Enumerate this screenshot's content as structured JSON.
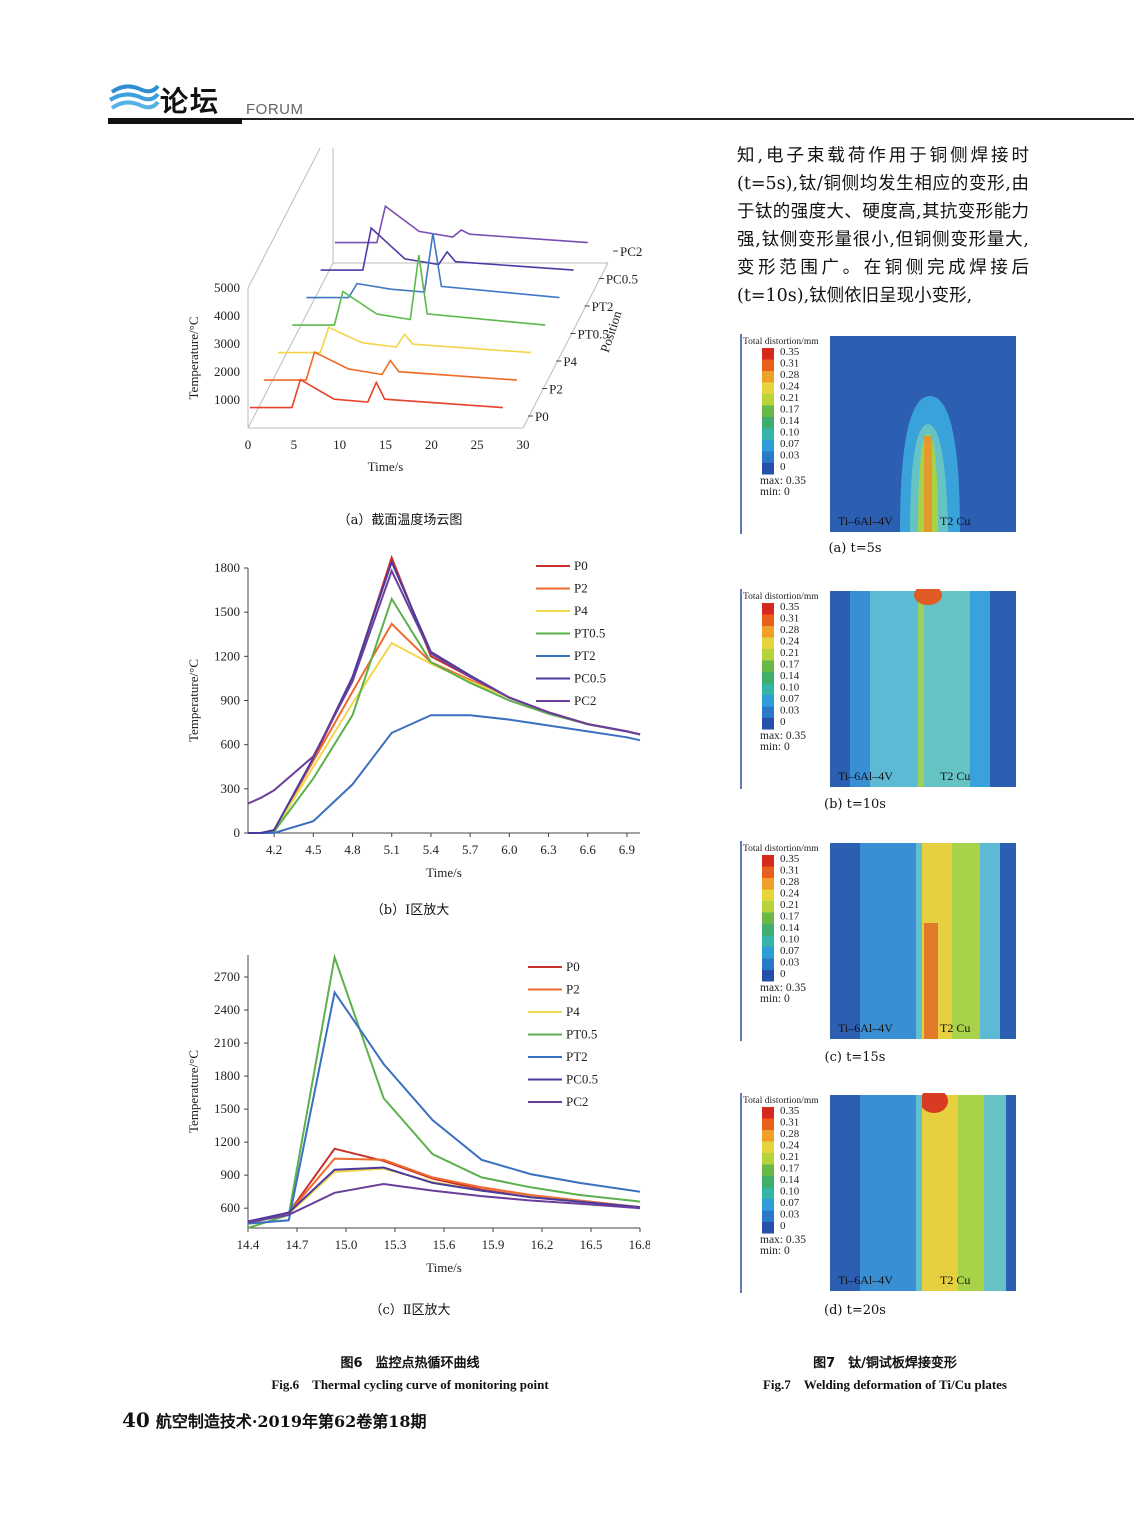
{
  "header": {
    "section_cn": "论坛",
    "section_en": "FORUM"
  },
  "body_text": [
    "知,电子束载荷作用于铜侧焊接时(t=5s),钛/铜侧均发生相应的变形,由于钛的强度大、硬度高,其抗变形能力强,钛侧变形量很小,但铜侧变形量大,变形范围广。在铜侧完成焊接后(t=10s),钛侧依旧呈现小变形,"
  ],
  "fig6": {
    "caption_cn": "图6　监控点热循环曲线",
    "caption_en": "Fig.6　Thermal cycling curve of monitoring point",
    "sub_a": "（a）截面温度场云图",
    "sub_b": "（b）Ⅰ区放大",
    "sub_c": "（c）Ⅱ区放大"
  },
  "fig7": {
    "caption_cn": "图7　钛/铜试板焊接变形",
    "caption_en": "Fig.7　Welding deformation of Ti/Cu plates",
    "panels": [
      {
        "label": "(a)  t=5s"
      },
      {
        "label": "(b)  t=10s"
      },
      {
        "label": "(c)  t=15s"
      },
      {
        "label": "(d)  t=20s"
      }
    ],
    "legend_title": "Total distortion/mm",
    "legend_values": [
      "0.35",
      "0.31",
      "0.28",
      "0.24",
      "0.21",
      "0.17",
      "0.14",
      "0.10",
      "0.07",
      "0.03",
      "0"
    ],
    "legend_colors": [
      "#d42a1e",
      "#e8601c",
      "#f0a02a",
      "#e7d43a",
      "#b8d23c",
      "#6ab845",
      "#3fae6a",
      "#36b4a8",
      "#2e9fd6",
      "#2a78c8",
      "#2650a8"
    ],
    "max_label": "max: 0.35",
    "min_label": "min: 0",
    "left_material": "Ti–6Al–4V",
    "right_material": "T2 Cu"
  },
  "footer": {
    "page": "40",
    "journal": "航空制造技术·2019年第62卷第18期"
  },
  "chart_data": [
    {
      "type": "line",
      "title": "",
      "projection": "3d-waterfall",
      "xlabel": "Time/s",
      "ylabel": "Temperature/°C",
      "zlabel": "Position",
      "xlim": [
        0,
        30
      ],
      "ylim": [
        0,
        5000
      ],
      "x_ticks": [
        0,
        5,
        10,
        15,
        20,
        25,
        30
      ],
      "y_ticks": [
        1000,
        2000,
        3000,
        4000,
        5000
      ],
      "series": [
        {
          "name": "P0",
          "color": "#e8412c",
          "x": [
            0,
            5,
            6,
            10,
            14,
            15,
            16,
            30
          ],
          "values": [
            300,
            300,
            1300,
            600,
            500,
            1200,
            600,
            300
          ]
        },
        {
          "name": "P2",
          "color": "#f06a26",
          "x": [
            0,
            5,
            6,
            10,
            14,
            15,
            16,
            30
          ],
          "values": [
            300,
            300,
            1300,
            700,
            500,
            1000,
            600,
            300
          ]
        },
        {
          "name": "P4",
          "color": "#f2d54a",
          "x": [
            0,
            5,
            6,
            10,
            14,
            15,
            16,
            30
          ],
          "values": [
            300,
            300,
            1200,
            650,
            500,
            950,
            600,
            300
          ]
        },
        {
          "name": "PT0.5",
          "color": "#5cb94c",
          "x": [
            0,
            5,
            6,
            10,
            14,
            15,
            16,
            30
          ],
          "values": [
            300,
            300,
            1500,
            700,
            500,
            2800,
            700,
            300
          ]
        },
        {
          "name": "PT2",
          "color": "#3f78c4",
          "x": [
            0,
            5,
            6,
            10,
            14,
            15,
            16,
            30
          ],
          "values": [
            300,
            300,
            800,
            600,
            500,
            2600,
            700,
            300
          ]
        },
        {
          "name": "PC0.5",
          "color": "#4e3aa6",
          "x": [
            0,
            5,
            6,
            10,
            14,
            15,
            16,
            30
          ],
          "values": [
            300,
            300,
            1800,
            700,
            500,
            950,
            600,
            300
          ]
        },
        {
          "name": "PC2",
          "color": "#7a4fb2",
          "x": [
            0,
            5,
            6,
            10,
            14,
            15,
            16,
            30
          ],
          "values": [
            300,
            300,
            1600,
            700,
            500,
            750,
            600,
            300
          ]
        }
      ]
    },
    {
      "type": "line",
      "title": "",
      "xlabel": "Time/s",
      "ylabel": "Temperature/°C",
      "xlim": [
        4.0,
        7.0
      ],
      "ylim": [
        0,
        1800
      ],
      "x_ticks": [
        4.2,
        4.5,
        4.8,
        5.1,
        5.4,
        5.7,
        6.0,
        6.3,
        6.6,
        6.9
      ],
      "y_ticks": [
        0,
        300,
        600,
        900,
        1200,
        1500,
        1800
      ],
      "legend": "top-right",
      "x": [
        4.0,
        4.1,
        4.2,
        4.5,
        4.8,
        5.1,
        5.4,
        5.7,
        6.0,
        6.3,
        6.6,
        6.9,
        7.0
      ],
      "series": [
        {
          "name": "P0",
          "color": "#c8302a",
          "values": [
            0,
            0,
            20,
            500,
            1050,
            1870,
            1200,
            1060,
            920,
            820,
            740,
            690,
            670
          ]
        },
        {
          "name": "P2",
          "color": "#ef6a2e",
          "values": [
            0,
            0,
            20,
            490,
            960,
            1420,
            1160,
            1040,
            920,
            820,
            740,
            690,
            670
          ]
        },
        {
          "name": "P4",
          "color": "#efd84a",
          "values": [
            0,
            0,
            10,
            450,
            880,
            1290,
            1150,
            1030,
            920,
            820,
            740,
            690,
            670
          ]
        },
        {
          "name": "PT0.5",
          "color": "#5cb14c",
          "values": [
            0,
            0,
            10,
            370,
            800,
            1590,
            1160,
            1020,
            900,
            810,
            740,
            690,
            670
          ]
        },
        {
          "name": "PT2",
          "color": "#3b70bf",
          "values": [
            0,
            0,
            0,
            80,
            330,
            680,
            800,
            800,
            770,
            730,
            690,
            650,
            630
          ]
        },
        {
          "name": "PC0.5",
          "color": "#4a3aa0",
          "values": [
            0,
            0,
            20,
            510,
            1060,
            1840,
            1230,
            1070,
            920,
            820,
            740,
            690,
            670
          ]
        },
        {
          "name": "PC2",
          "color": "#6a3f9a",
          "values": [
            200,
            240,
            290,
            520,
            1030,
            1780,
            1220,
            1060,
            920,
            820,
            740,
            690,
            670
          ]
        }
      ]
    },
    {
      "type": "line",
      "title": "",
      "xlabel": "Time/s",
      "ylabel": "Temperature/°C",
      "xlim": [
        14.4,
        16.8
      ],
      "ylim": [
        420,
        2900
      ],
      "x_ticks": [
        14.4,
        14.7,
        15.0,
        15.3,
        15.6,
        15.9,
        16.2,
        16.5,
        16.8
      ],
      "y_ticks": [
        600,
        900,
        1200,
        1500,
        1800,
        2100,
        2400,
        2700
      ],
      "legend": "top-right",
      "x": [
        14.4,
        14.65,
        14.93,
        15.23,
        15.53,
        15.83,
        16.13,
        16.43,
        16.8
      ],
      "series": [
        {
          "name": "P0",
          "color": "#c8302a",
          "values": [
            470,
            560,
            1140,
            1030,
            870,
            770,
            700,
            660,
            610
          ]
        },
        {
          "name": "P2",
          "color": "#ef6a2e",
          "values": [
            460,
            560,
            1050,
            1040,
            880,
            790,
            720,
            670,
            610
          ]
        },
        {
          "name": "P4",
          "color": "#efd84a",
          "values": [
            460,
            550,
            930,
            960,
            840,
            760,
            700,
            660,
            610
          ]
        },
        {
          "name": "PT0.5",
          "color": "#5cb14c",
          "values": [
            420,
            540,
            2880,
            1600,
            1090,
            880,
            790,
            720,
            660
          ]
        },
        {
          "name": "PT2",
          "color": "#3b70bf",
          "values": [
            460,
            490,
            2560,
            1910,
            1400,
            1040,
            910,
            830,
            750
          ]
        },
        {
          "name": "PC0.5",
          "color": "#4a3aa0",
          "values": [
            480,
            560,
            950,
            970,
            830,
            760,
            700,
            660,
            610
          ]
        },
        {
          "name": "PC2",
          "color": "#6a3f9a",
          "values": [
            470,
            540,
            740,
            820,
            760,
            710,
            670,
            640,
            600
          ]
        }
      ]
    }
  ]
}
